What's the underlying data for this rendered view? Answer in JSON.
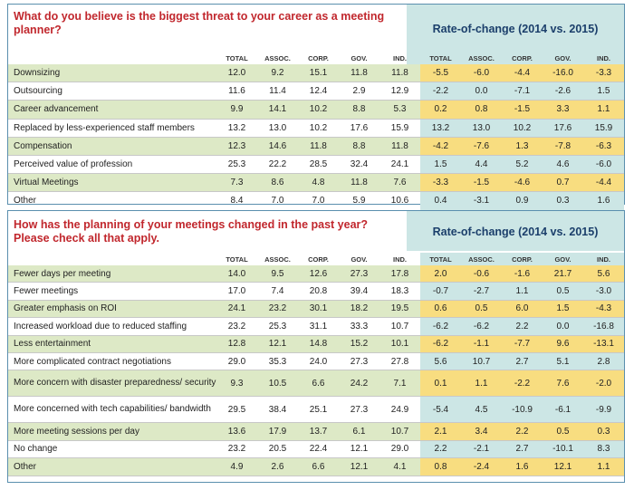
{
  "section1": {
    "question": "What do you believe is the biggest threat to your career as a meeting planner?",
    "rate_title": "Rate-of-change (2014 vs. 2015)",
    "columns": [
      "TOTAL",
      "ASSOC.",
      "CORP.",
      "GOV.",
      "IND."
    ],
    "rate_columns": [
      "TOTAL",
      "ASSOC.",
      "CORP.",
      "GOV.",
      "IND."
    ],
    "rows": [
      {
        "label": "Downsizing",
        "values": [
          "12.0",
          "9.2",
          "15.1",
          "11.8",
          "11.8"
        ],
        "rates": [
          "-5.5",
          "-6.0",
          "-4.4",
          "-16.0",
          "-3.3"
        ]
      },
      {
        "label": "Outsourcing",
        "values": [
          "11.6",
          "11.4",
          "12.4",
          "2.9",
          "12.9"
        ],
        "rates": [
          "-2.2",
          "0.0",
          "-7.1",
          "-2.6",
          "1.5"
        ]
      },
      {
        "label": "Career advancement",
        "values": [
          "9.9",
          "14.1",
          "10.2",
          "8.8",
          "5.3"
        ],
        "rates": [
          "0.2",
          "0.8",
          "-1.5",
          "3.3",
          "1.1"
        ]
      },
      {
        "label": "Replaced by less-experienced staff members",
        "values": [
          "13.2",
          "13.0",
          "10.2",
          "17.6",
          "15.9"
        ],
        "rates": [
          "13.2",
          "13.0",
          "10.2",
          "17.6",
          "15.9"
        ]
      },
      {
        "label": "Compensation",
        "values": [
          "12.3",
          "14.6",
          "11.8",
          "8.8",
          "11.8"
        ],
        "rates": [
          "-4.2",
          "-7.6",
          "1.3",
          "-7.8",
          "-6.3"
        ]
      },
      {
        "label": "Perceived value of profession",
        "values": [
          "25.3",
          "22.2",
          "28.5",
          "32.4",
          "24.1"
        ],
        "rates": [
          "1.5",
          "4.4",
          "5.2",
          "4.6",
          "-6.0"
        ]
      },
      {
        "label": "Virtual Meetings",
        "values": [
          "7.3",
          "8.6",
          "4.8",
          "11.8",
          "7.6"
        ],
        "rates": [
          "-3.3",
          "-1.5",
          "-4.6",
          "0.7",
          "-4.4"
        ]
      },
      {
        "label": "Other",
        "values": [
          "8.4",
          "7.0",
          "7.0",
          "5.9",
          "10.6"
        ],
        "rates": [
          "0.4",
          "-3.1",
          "0.9",
          "0.3",
          "1.6"
        ]
      }
    ]
  },
  "section2": {
    "question_line1": "How has the planning of your meetings changed in the past year?",
    "question_line2": "Please check all that apply.",
    "rate_title": "Rate-of-change (2014 vs. 2015)",
    "columns": [
      "TOTAL",
      "ASSOC.",
      "CORP.",
      "GOV.",
      "IND."
    ],
    "rate_columns": [
      "TOTAL",
      "ASSOC.",
      "CORP.",
      "GOV.",
      "IND."
    ],
    "rows": [
      {
        "label": "Fewer days per meeting",
        "values": [
          "14.0",
          "9.5",
          "12.6",
          "27.3",
          "17.8"
        ],
        "rates": [
          "2.0",
          "-0.6",
          "-1.6",
          "21.7",
          "5.6"
        ]
      },
      {
        "label": "Fewer meetings",
        "values": [
          "17.0",
          "7.4",
          "20.8",
          "39.4",
          "18.3"
        ],
        "rates": [
          "-0.7",
          "-2.7",
          "1.1",
          "0.5",
          "-3.0"
        ]
      },
      {
        "label": "Greater emphasis on ROI",
        "values": [
          "24.1",
          "23.2",
          "30.1",
          "18.2",
          "19.5"
        ],
        "rates": [
          "0.6",
          "0.5",
          "6.0",
          "1.5",
          "-4.3"
        ]
      },
      {
        "label": "Increased workload due to reduced staffing",
        "values": [
          "23.2",
          "25.3",
          "31.1",
          "33.3",
          "10.7"
        ],
        "rates": [
          "-6.2",
          "-6.2",
          "2.2",
          "0.0",
          "-16.8"
        ]
      },
      {
        "label": "Less entertainment",
        "values": [
          "12.8",
          "12.1",
          "14.8",
          "15.2",
          "10.1"
        ],
        "rates": [
          "-6.2",
          "-1.1",
          "-7.7",
          "9.6",
          "-13.1"
        ]
      },
      {
        "label": "More complicated contract negotiations",
        "values": [
          "29.0",
          "35.3",
          "24.0",
          "27.3",
          "27.8"
        ],
        "rates": [
          "5.6",
          "10.7",
          "2.7",
          "5.1",
          "2.8"
        ]
      },
      {
        "label": "More concern with disaster preparedness/ security",
        "values": [
          "9.3",
          "10.5",
          "6.6",
          "24.2",
          "7.1"
        ],
        "rates": [
          "0.1",
          "1.1",
          "-2.2",
          "7.6",
          "-2.0"
        ]
      },
      {
        "label": "More concerned with tech capabilities/ bandwidth",
        "values": [
          "29.5",
          "38.4",
          "25.1",
          "27.3",
          "24.9"
        ],
        "rates": [
          "-5.4",
          "4.5",
          "-10.9",
          "-6.1",
          "-9.9"
        ]
      },
      {
        "label": "More meeting sessions per day",
        "values": [
          "13.6",
          "17.9",
          "13.7",
          "6.1",
          "10.7"
        ],
        "rates": [
          "2.1",
          "3.4",
          "2.2",
          "0.5",
          "0.3"
        ]
      },
      {
        "label": "No change",
        "values": [
          "23.2",
          "20.5",
          "22.4",
          "12.1",
          "29.0"
        ],
        "rates": [
          "2.2",
          "-2.1",
          "2.7",
          "-10.1",
          "8.3"
        ]
      },
      {
        "label": "Other",
        "values": [
          "4.9",
          "2.6",
          "6.6",
          "12.1",
          "4.1"
        ],
        "rates": [
          "0.8",
          "-2.4",
          "1.6",
          "12.1",
          "1.1"
        ]
      }
    ]
  }
}
